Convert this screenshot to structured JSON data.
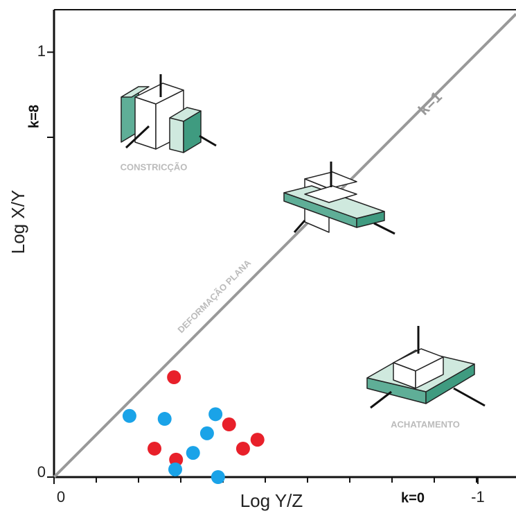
{
  "chart_data": {
    "type": "scatter",
    "x_label": "Log Y/Z",
    "y_label": "Log X/Y",
    "xlim": [
      0,
      1.09
    ],
    "ylim": [
      0,
      1.1
    ],
    "xticks": [
      0,
      {
        "value": 1,
        "label": "-1"
      }
    ],
    "yticks": [
      0,
      1
    ],
    "annotations": [
      "k=1",
      "k=8",
      "k=0",
      "DEFORMAÇÃO PLANA",
      "CONSTRICÇÃO",
      "ACHATAMENTO"
    ],
    "series": [
      {
        "color": "#e8202a",
        "x": [
          0.283,
          0.413,
          0.48,
          0.446,
          0.237,
          0.288
        ],
        "values": [
          0.235,
          0.124,
          0.088,
          0.067,
          0.067,
          0.041
        ]
      },
      {
        "color": "#1aa3e8",
        "x": [
          0.178,
          0.261,
          0.381,
          0.361,
          0.328,
          0.286,
          0.387
        ],
        "values": [
          0.144,
          0.137,
          0.148,
          0.103,
          0.057,
          0.018,
          0
        ]
      }
    ]
  }
}
